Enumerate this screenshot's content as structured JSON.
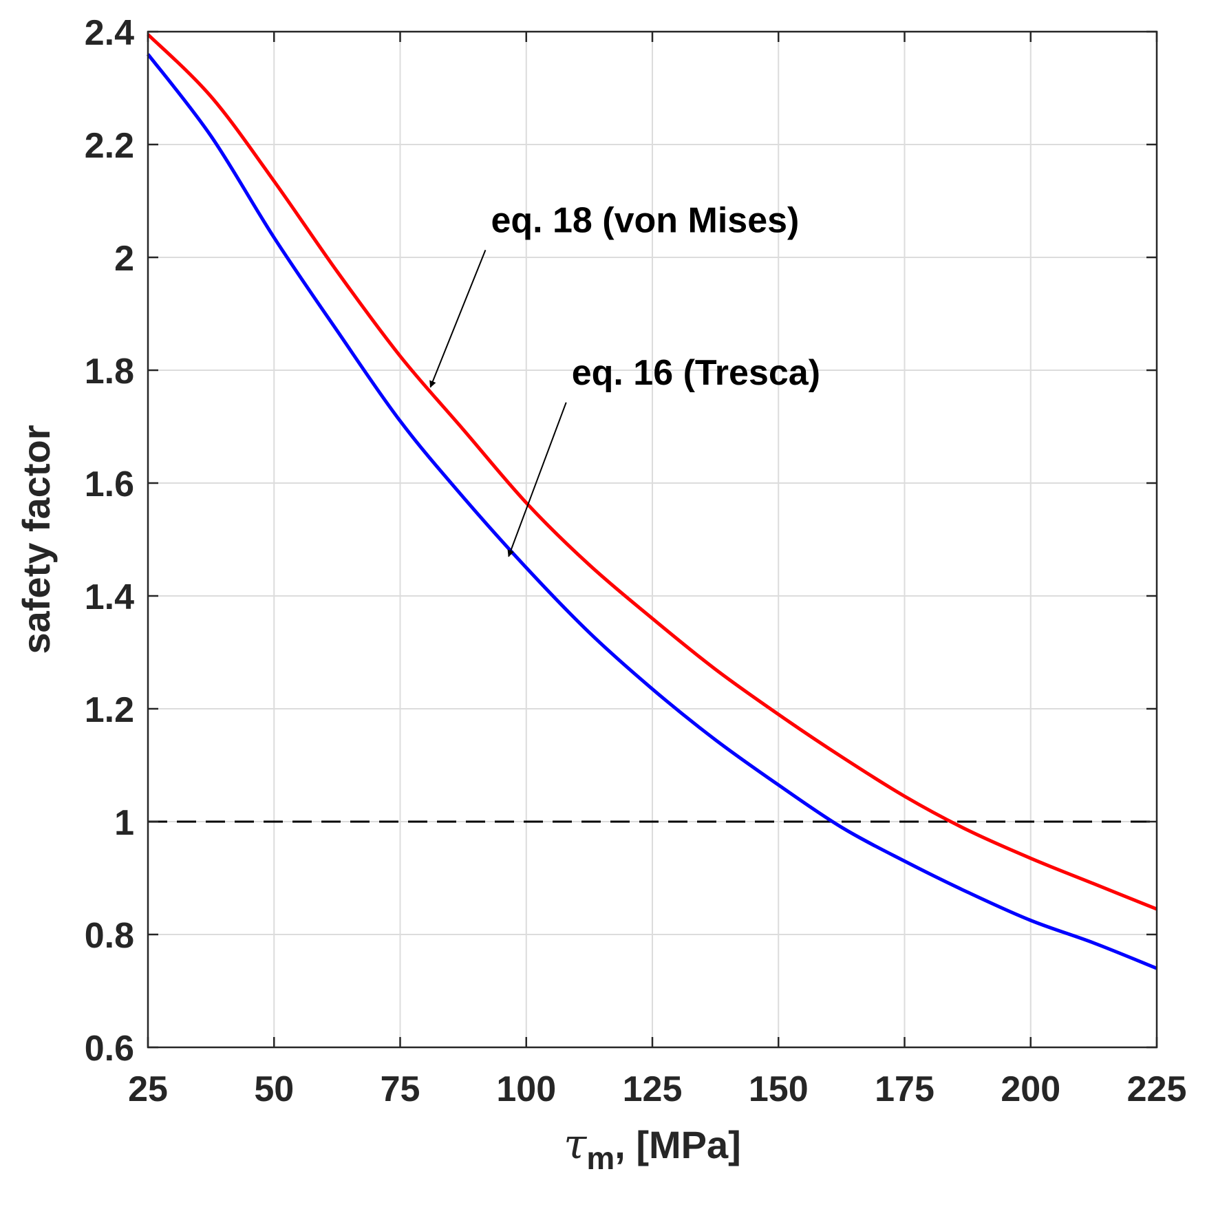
{
  "chart_data": {
    "type": "line",
    "title": "",
    "xlabel": {
      "symbol": "τ",
      "subscript": "m",
      "rest": ", [MPa]"
    },
    "ylabel": "safety factor",
    "xlim": [
      25,
      225
    ],
    "ylim": [
      0.6,
      2.4
    ],
    "grid": true,
    "xticks": [
      "25",
      "50",
      "75",
      "100",
      "125",
      "150",
      "175",
      "200",
      "225"
    ],
    "yticks": [
      "0.6",
      "0.8",
      "1",
      "1.2",
      "1.4",
      "1.6",
      "1.8",
      "2",
      "2.2",
      "2.4"
    ],
    "x": [
      25,
      37.5,
      50,
      62.5,
      75,
      87.5,
      100,
      112.5,
      125,
      137.5,
      150,
      162.5,
      175,
      187.5,
      200,
      212.5,
      225
    ],
    "series": [
      {
        "name": "eq. 18 (von Mises)",
        "color": "#ff0000",
        "values": [
          2.395,
          2.285,
          2.135,
          1.975,
          1.825,
          1.695,
          1.565,
          1.455,
          1.36,
          1.27,
          1.19,
          1.115,
          1.045,
          0.985,
          0.935,
          0.89,
          0.845
        ]
      },
      {
        "name": "eq. 16 (Tresca)",
        "color": "#0000ff",
        "values": [
          2.36,
          2.215,
          2.035,
          1.87,
          1.71,
          1.575,
          1.45,
          1.335,
          1.235,
          1.145,
          1.065,
          0.99,
          0.93,
          0.875,
          0.825,
          0.785,
          0.74
        ]
      }
    ],
    "reference_line": {
      "y": 1,
      "style": "dashed",
      "color": "#000000"
    },
    "annotations": [
      {
        "text": "eq. 18 (von Mises)",
        "points_to": {
          "x": 81,
          "y": 1.77
        },
        "text_at": {
          "x": 93,
          "y": 2.03
        }
      },
      {
        "text": "eq. 16 (Tresca)",
        "points_to": {
          "x": 96.5,
          "y": 1.47
        },
        "text_at": {
          "x": 109,
          "y": 1.76
        }
      }
    ]
  }
}
